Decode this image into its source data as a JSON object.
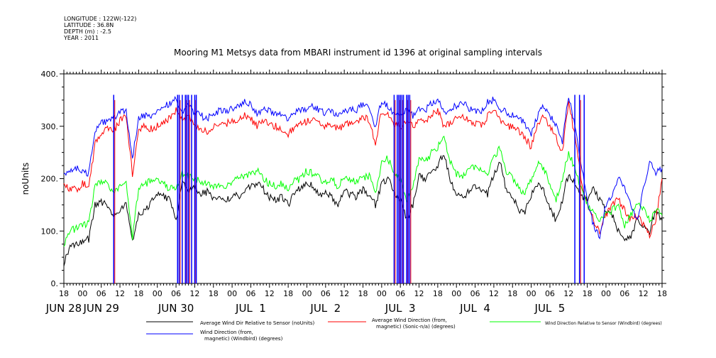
{
  "meta": {
    "longitude": "LONGITUDE : 122W(-122)",
    "latitude": "LATITUDE : 36.8N",
    "depth": "DEPTH (m) : -2.5",
    "year": "YEAR : 2011"
  },
  "chart_data": {
    "type": "line",
    "title": "Mooring M1 Metsys data from MBARI instrument id 1396 at original sampling intervals",
    "ylabel": "noUnits",
    "xlabel": "",
    "ylim": [
      0,
      400
    ],
    "yticks": [
      0,
      100,
      200,
      300,
      400
    ],
    "ytick_labels": [
      "0.",
      "100.",
      "200.",
      "300.",
      "400."
    ],
    "x_unit": "hours since 2011-06-28 18:00",
    "xlim": [
      0,
      192
    ],
    "xtick_hours": [
      0,
      6,
      12,
      18,
      24,
      30,
      36,
      42,
      48,
      54,
      60,
      66,
      72,
      78,
      84,
      90,
      96,
      102,
      108,
      114,
      120,
      126,
      132,
      138,
      144,
      150,
      156,
      162,
      168,
      174,
      180,
      186,
      192
    ],
    "xtick_labels": [
      "18",
      "00",
      "06",
      "12",
      "18",
      "00",
      "06",
      "12",
      "18",
      "00",
      "06",
      "12",
      "18",
      "00",
      "06",
      "12",
      "18",
      "00",
      "06",
      "12",
      "18",
      "00",
      "06",
      "12",
      "18",
      "00",
      "06",
      "12",
      "18",
      "00",
      "06",
      "12",
      "18"
    ],
    "day_labels": [
      {
        "text": "JUN 28",
        "hour": 0
      },
      {
        "text": "JUN 29",
        "hour": 12
      },
      {
        "text": "JUN 30",
        "hour": 36
      },
      {
        "text": "JUL  1",
        "hour": 60
      },
      {
        "text": "JUL  2",
        "hour": 84
      },
      {
        "text": "JUL  3",
        "hour": 108
      },
      {
        "text": "JUL  4",
        "hour": 132
      },
      {
        "text": "JUL  5",
        "hour": 156
      }
    ],
    "grid": false,
    "legend_placement": "bottom",
    "series": [
      {
        "name": "Average Wind Dir Relative to Sensor (noUnits)",
        "color": "#000000",
        "x": [
          0,
          2,
          4,
          6,
          8,
          10,
          12,
          14,
          16,
          18,
          20,
          22,
          24,
          26,
          28,
          30,
          32,
          34,
          36,
          38,
          40,
          42,
          44,
          46,
          48,
          50,
          52,
          54,
          56,
          58,
          60,
          62,
          64,
          66,
          68,
          70,
          72,
          74,
          76,
          78,
          80,
          82,
          84,
          86,
          88,
          90,
          92,
          94,
          96,
          98,
          100,
          102,
          104,
          106,
          108,
          110,
          112,
          114,
          116,
          118,
          120,
          122,
          124,
          126,
          128,
          130,
          132,
          134,
          136,
          138,
          140,
          142,
          144,
          146,
          148,
          150,
          152,
          154,
          156,
          158,
          160,
          162,
          164,
          166,
          168,
          170,
          172,
          174,
          176,
          178,
          180,
          182,
          184,
          186,
          188,
          190,
          192
        ],
        "y": [
          40,
          70,
          75,
          80,
          85,
          150,
          155,
          150,
          125,
          140,
          155,
          80,
          130,
          140,
          155,
          170,
          165,
          160,
          120,
          190,
          180,
          185,
          170,
          175,
          160,
          165,
          155,
          170,
          165,
          180,
          185,
          190,
          180,
          165,
          160,
          165,
          150,
          175,
          180,
          190,
          185,
          170,
          175,
          165,
          150,
          175,
          170,
          165,
          180,
          170,
          150,
          190,
          200,
          175,
          160,
          120,
          150,
          205,
          200,
          215,
          225,
          250,
          200,
          170,
          165,
          175,
          185,
          180,
          170,
          210,
          230,
          180,
          165,
          140,
          135,
          170,
          190,
          175,
          145,
          120,
          160,
          210,
          190,
          165,
          160,
          180,
          160,
          140,
          130,
          100,
          80,
          90,
          120,
          110,
          100,
          140,
          120
        ]
      },
      {
        "name": "Average Wind Direction (from, magnetic) (Sonic-n/a) (degrees)",
        "color": "#ff0000",
        "x": [
          0,
          2,
          4,
          6,
          8,
          10,
          12,
          14,
          16,
          18,
          20,
          22,
          24,
          26,
          28,
          30,
          32,
          34,
          36,
          38,
          40,
          42,
          44,
          46,
          48,
          50,
          52,
          54,
          56,
          58,
          60,
          62,
          64,
          66,
          68,
          70,
          72,
          74,
          76,
          78,
          80,
          82,
          84,
          86,
          88,
          90,
          92,
          94,
          96,
          98,
          100,
          102,
          104,
          106,
          108,
          110,
          112,
          114,
          116,
          118,
          120,
          122,
          124,
          126,
          128,
          130,
          132,
          134,
          136,
          138,
          140,
          142,
          144,
          146,
          148,
          150,
          152,
          154,
          156,
          158,
          160,
          162,
          164,
          166,
          168,
          170,
          172,
          174,
          176,
          178,
          180,
          182,
          184,
          186,
          188,
          190,
          192
        ],
        "y": [
          185,
          180,
          180,
          190,
          185,
          265,
          285,
          295,
          290,
          310,
          320,
          210,
          290,
          300,
          295,
          300,
          305,
          315,
          330,
          310,
          320,
          305,
          295,
          290,
          300,
          305,
          305,
          310,
          310,
          320,
          315,
          300,
          310,
          305,
          300,
          295,
          285,
          300,
          305,
          310,
          315,
          305,
          300,
          305,
          295,
          300,
          310,
          305,
          320,
          310,
          270,
          330,
          320,
          305,
          300,
          310,
          300,
          310,
          305,
          320,
          330,
          300,
          305,
          315,
          320,
          310,
          305,
          300,
          320,
          330,
          310,
          300,
          300,
          290,
          280,
          260,
          300,
          320,
          300,
          280,
          250,
          350,
          280,
          200,
          150,
          120,
          100,
          130,
          150,
          160,
          140,
          120,
          130,
          110,
          90,
          120,
          200
        ]
      },
      {
        "name": "Wind Direction Relative to Sensor (Windbird) (degrees)",
        "color": "#00ff00",
        "x": [
          0,
          2,
          4,
          6,
          8,
          10,
          12,
          14,
          16,
          18,
          20,
          22,
          24,
          26,
          28,
          30,
          32,
          34,
          36,
          38,
          40,
          42,
          44,
          46,
          48,
          50,
          52,
          54,
          56,
          58,
          60,
          62,
          64,
          66,
          68,
          70,
          72,
          74,
          76,
          78,
          80,
          82,
          84,
          86,
          88,
          90,
          92,
          94,
          96,
          98,
          100,
          102,
          104,
          106,
          108,
          110,
          112,
          114,
          116,
          118,
          120,
          122,
          124,
          126,
          128,
          130,
          132,
          134,
          136,
          138,
          140,
          142,
          144,
          146,
          148,
          150,
          152,
          154,
          156,
          158,
          160,
          162,
          164,
          166,
          168,
          170,
          172,
          174,
          176,
          178,
          180,
          182,
          184,
          186,
          188,
          190,
          192
        ],
        "y": [
          70,
          100,
          105,
          110,
          115,
          185,
          195,
          190,
          170,
          185,
          195,
          90,
          180,
          190,
          195,
          195,
          190,
          180,
          185,
          210,
          205,
          200,
          195,
          190,
          185,
          190,
          185,
          195,
          200,
          205,
          210,
          215,
          200,
          190,
          185,
          190,
          180,
          195,
          200,
          215,
          210,
          200,
          195,
          200,
          185,
          205,
          200,
          195,
          200,
          205,
          170,
          230,
          240,
          210,
          200,
          160,
          180,
          240,
          230,
          250,
          260,
          280,
          235,
          210,
          205,
          215,
          225,
          220,
          210,
          240,
          260,
          215,
          200,
          180,
          170,
          200,
          230,
          220,
          190,
          160,
          200,
          250,
          220,
          180,
          150,
          140,
          120,
          130,
          140,
          150,
          110,
          130,
          150,
          140,
          120,
          140,
          130
        ]
      },
      {
        "name": "Wind Direction (from, magnetic) (Windbird) (degrees)",
        "color": "#0000ff",
        "x": [
          0,
          2,
          4,
          6,
          8,
          10,
          12,
          14,
          16,
          18,
          20,
          22,
          24,
          26,
          28,
          30,
          32,
          34,
          36,
          38,
          40,
          42,
          44,
          46,
          48,
          50,
          52,
          54,
          56,
          58,
          60,
          62,
          64,
          66,
          68,
          70,
          72,
          74,
          76,
          78,
          80,
          82,
          84,
          86,
          88,
          90,
          92,
          94,
          96,
          98,
          100,
          102,
          104,
          106,
          108,
          110,
          112,
          114,
          116,
          118,
          120,
          122,
          124,
          126,
          128,
          130,
          132,
          134,
          136,
          138,
          140,
          142,
          144,
          146,
          148,
          150,
          152,
          154,
          156,
          158,
          160,
          162,
          164,
          166,
          168,
          170,
          172,
          174,
          176,
          178,
          180,
          182,
          184,
          186,
          188,
          190,
          192
        ],
        "y": [
          210,
          215,
          220,
          215,
          210,
          290,
          305,
          310,
          315,
          325,
          330,
          240,
          315,
          320,
          315,
          330,
          335,
          345,
          350,
          330,
          340,
          325,
          320,
          315,
          325,
          330,
          330,
          335,
          335,
          345,
          340,
          325,
          335,
          330,
          325,
          320,
          310,
          325,
          330,
          335,
          340,
          330,
          325,
          330,
          320,
          325,
          335,
          330,
          345,
          335,
          300,
          350,
          340,
          325,
          320,
          335,
          320,
          335,
          330,
          345,
          350,
          325,
          330,
          340,
          345,
          335,
          330,
          325,
          345,
          350,
          335,
          325,
          320,
          315,
          305,
          285,
          320,
          340,
          320,
          300,
          270,
          360,
          300,
          230,
          160,
          110,
          90,
          150,
          170,
          200,
          180,
          150,
          120,
          180,
          230,
          210,
          220
        ]
      },
      {
        "name": "",
        "color": "#0000ff",
        "spikes_hours": [
          16,
          36.5,
          37,
          38,
          39,
          39.5,
          40,
          41,
          42,
          42.5,
          106,
          107,
          107.5,
          108,
          108.5,
          109,
          110,
          110.5,
          111,
          164,
          165.5,
          167
        ]
      }
    ],
    "legend": [
      {
        "label": "Average Wind Dir Relative to Sensor (noUnits)",
        "color": "#000000"
      },
      {
        "label": "Average Wind Direction (from,",
        "label2": "magnetic) (Sonic-n/a) (degrees)",
        "color": "#ff0000"
      },
      {
        "label": "Wind Direction Relative to Sensor (Windbird) (degrees)",
        "color": "#00ff00"
      },
      {
        "label": "Wind Direction (from,",
        "label2": "magnetic) (Windbird) (degrees)",
        "color": "#0000ff"
      }
    ]
  }
}
